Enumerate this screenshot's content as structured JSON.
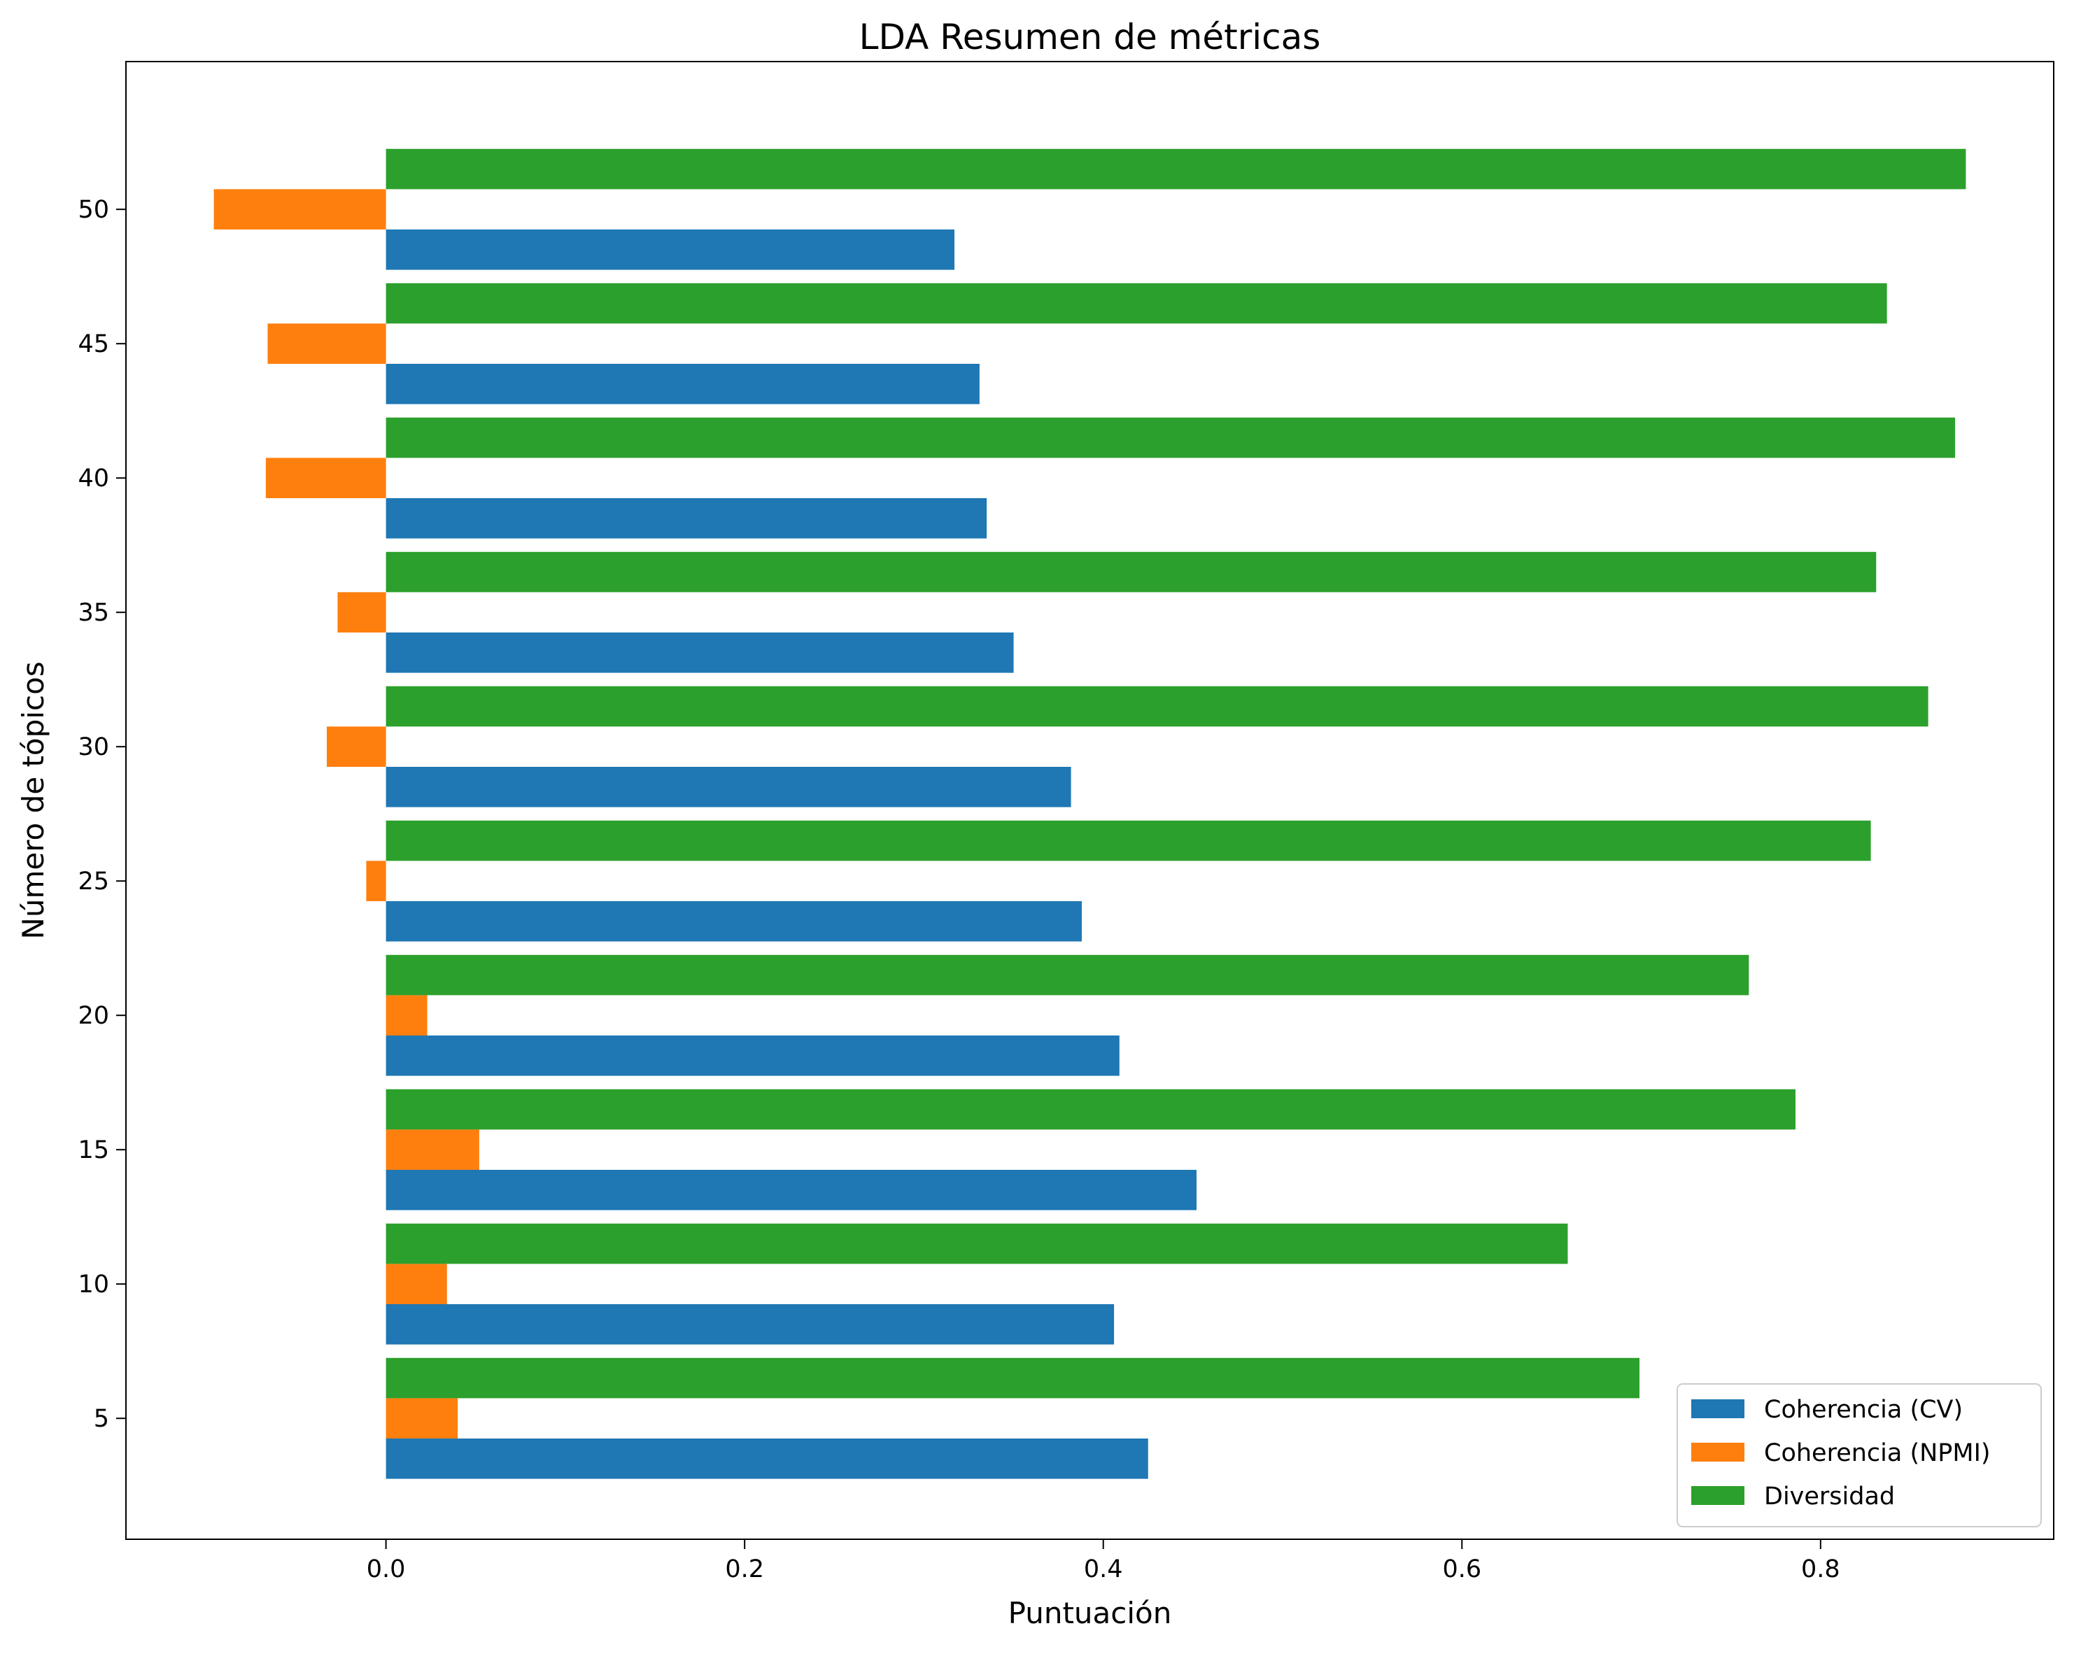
{
  "chart_data": {
    "type": "bar",
    "orientation": "horizontal",
    "title": "LDA Resumen de métricas",
    "xlabel": "Puntuación",
    "ylabel": "Número de tópicos",
    "categories": [
      5,
      10,
      15,
      20,
      25,
      30,
      35,
      40,
      45,
      50
    ],
    "xlim": [
      -0.145,
      0.93
    ],
    "ylim": [
      0.5,
      55.5
    ],
    "xticks": [
      0.0,
      0.2,
      0.4,
      0.6,
      0.8
    ],
    "xtick_labels": [
      "0.0",
      "0.2",
      "0.4",
      "0.6",
      "0.8"
    ],
    "yticks": [
      5,
      10,
      15,
      20,
      25,
      30,
      35,
      40,
      45,
      50
    ],
    "ytick_labels": [
      "5",
      "10",
      "15",
      "20",
      "25",
      "30",
      "35",
      "40",
      "45",
      "50"
    ],
    "grid": false,
    "legend_position": "lower-right",
    "series": [
      {
        "name": "Coherencia (CV)",
        "color": "#1f77b4",
        "offset": -1.5,
        "values": [
          0.425,
          0.406,
          0.452,
          0.409,
          0.388,
          0.382,
          0.35,
          0.335,
          0.331,
          0.317
        ]
      },
      {
        "name": "Coherencia (NPMI)",
        "color": "#ff7f0e",
        "offset": 0.0,
        "values": [
          0.04,
          0.034,
          0.052,
          0.023,
          -0.011,
          -0.033,
          -0.027,
          -0.067,
          -0.066,
          -0.096
        ]
      },
      {
        "name": "Diversidad",
        "color": "#2ca02c",
        "offset": 1.5,
        "values": [
          0.699,
          0.659,
          0.786,
          0.76,
          0.828,
          0.86,
          0.831,
          0.875,
          0.837,
          0.881
        ]
      }
    ],
    "bar_height": 1.5
  }
}
